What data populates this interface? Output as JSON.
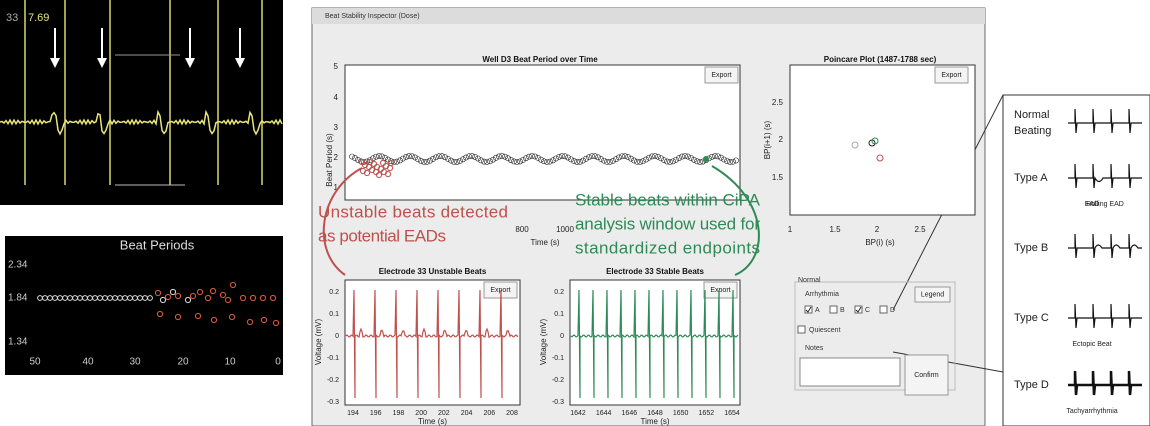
{
  "live_view": {
    "channel": "33",
    "value": "7.69"
  },
  "beat_periods": {
    "title": "Beat Periods",
    "yticks": [
      "2.34",
      "1.84",
      "1.34"
    ],
    "xticks": [
      "50",
      "40",
      "30",
      "20",
      "10",
      "0"
    ]
  },
  "window": {
    "title": "Beat Stability Inspector (Dose)",
    "period_plot": {
      "title": "Well D3 Beat Period over Time",
      "button": "Export",
      "ylabel": "Beat Period (s)",
      "xlabel": "Time (s)",
      "yticks": [
        "5",
        "4",
        "3",
        "2",
        "1"
      ],
      "xticks": [
        "800",
        "1000"
      ]
    },
    "poincare": {
      "title": "Poincare Plot (1487-1788 sec)",
      "button": "Export",
      "ylabel": "BP(i+1) (s)",
      "xlabel": "BP(i) (s)",
      "yticks": [
        "2.5",
        "2",
        "1.5"
      ],
      "xticks": [
        "1",
        "1.5",
        "2",
        "2.5"
      ]
    },
    "unstable": {
      "title": "Electrode 33 Unstable Beats",
      "button": "Export",
      "ylabel": "Voltage (mV)",
      "xlabel": "Time (s)",
      "yticks": [
        "0.2",
        "0.1",
        "0",
        "-0.1",
        "-0.2",
        "-0.3"
      ],
      "xticks": [
        "194",
        "196",
        "198",
        "200",
        "202",
        "204",
        "206",
        "208"
      ]
    },
    "stable": {
      "title": "Electrode 33 Stable Beats",
      "button": "Export",
      "ylabel": "Voltage (mV)",
      "xlabel": "Time (s)",
      "yticks": [
        "0.2",
        "0.1",
        "0",
        "-0.1",
        "-0.2",
        "-0.3"
      ],
      "xticks": [
        "1642",
        "1644",
        "1646",
        "1648",
        "1650",
        "1652",
        "1654"
      ]
    },
    "controls": {
      "group": "Normal",
      "arrhythmia": "Arrhythmia",
      "checks": [
        "A",
        "B",
        "C",
        "D"
      ],
      "quiescent": "Quiescent",
      "notes": "Notes",
      "legend_button": "Legend",
      "confirm_button": "Confirm"
    }
  },
  "annotations": {
    "unstable": [
      "Unstable beats detected",
      "as potential EADs"
    ],
    "stable": [
      "Stable beats within CiPA",
      "analysis window used for",
      "standardized endpoints"
    ]
  },
  "legend": {
    "items": [
      {
        "label": [
          "Normal",
          "Beating"
        ]
      },
      {
        "label": [
          "Type A"
        ],
        "note": "EAD"
      },
      {
        "label": [
          "Type B"
        ],
        "note": "Rolling EAD"
      },
      {
        "label": [
          "Type C"
        ],
        "note": "Ectopic Beat"
      },
      {
        "label": [
          "Type D"
        ],
        "note": "Tachyarrhythmia"
      }
    ]
  }
}
